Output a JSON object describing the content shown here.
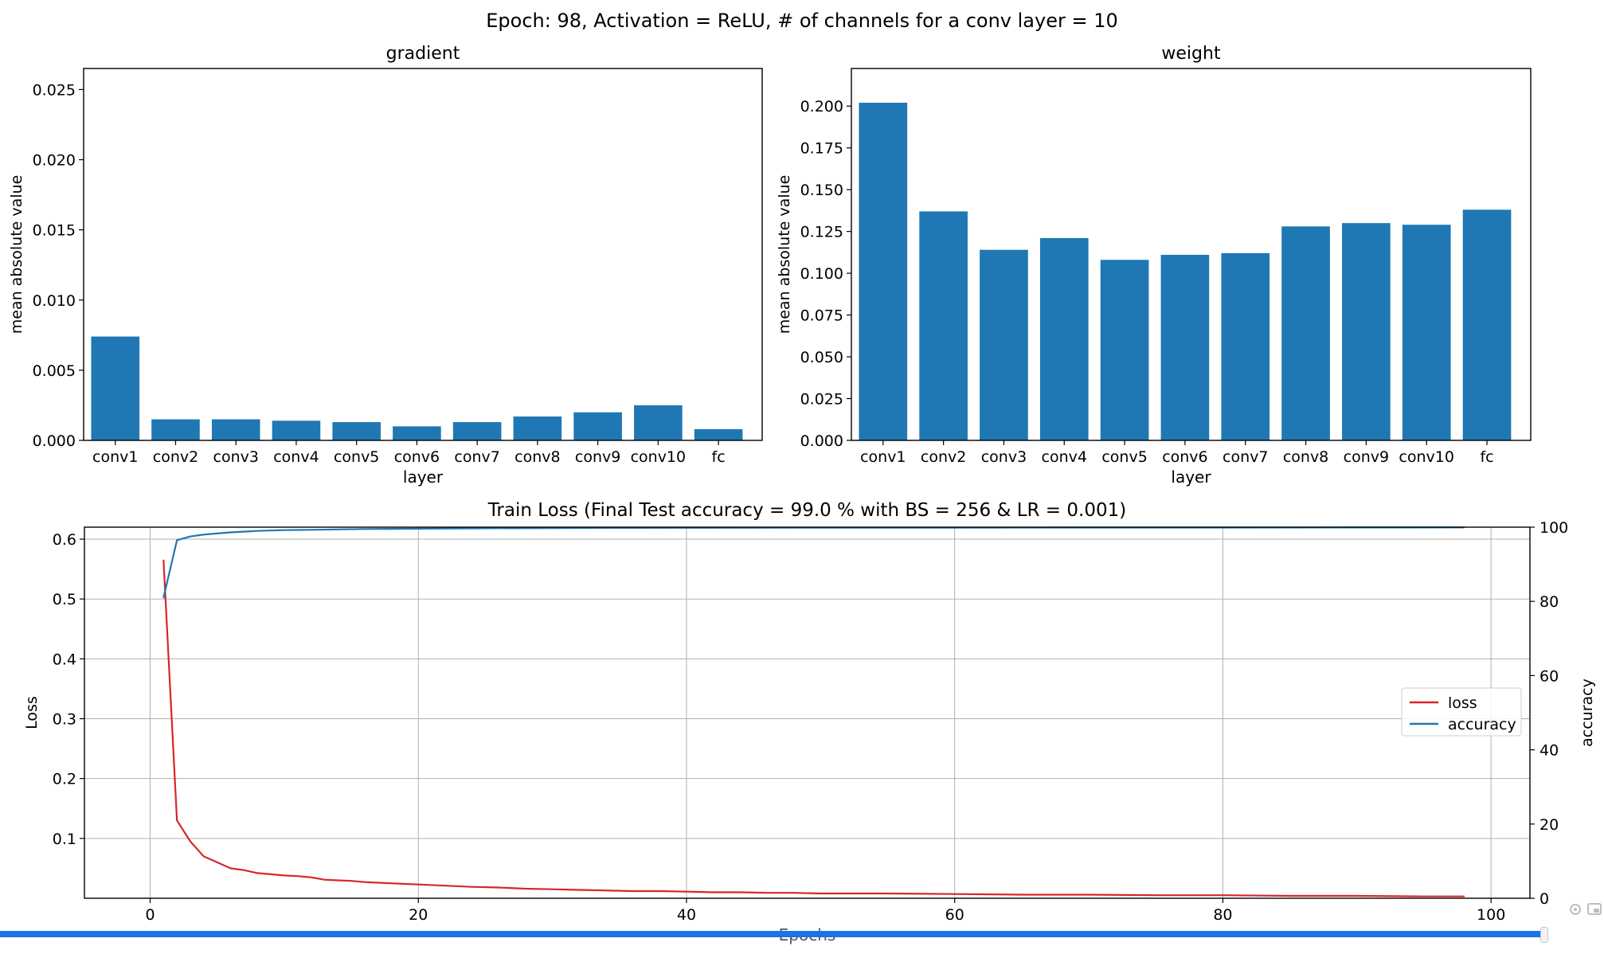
{
  "suptitle": "Epoch: 98, Activation = ReLU, # of channels for a conv layer = 10",
  "colors": {
    "bar": "#1f77b4",
    "loss": "#d62728",
    "accuracy": "#1f77b4"
  },
  "player": {
    "progress": 0.998,
    "icons": [
      "settings-icon",
      "pip-icon"
    ]
  },
  "chart_data": [
    {
      "id": "gradient",
      "type": "bar",
      "title": "gradient",
      "xlabel": "layer",
      "ylabel": "mean absolute value",
      "categories": [
        "conv1",
        "conv2",
        "conv3",
        "conv4",
        "conv5",
        "conv6",
        "conv7",
        "conv8",
        "conv9",
        "conv10",
        "fc"
      ],
      "values": [
        0.0074,
        0.0015,
        0.0015,
        0.0014,
        0.0013,
        0.001,
        0.0013,
        0.0017,
        0.002,
        0.0025,
        0.0008
      ],
      "ylim": [
        0,
        0.0265
      ],
      "yticks": [
        "0.000",
        "0.005",
        "0.010",
        "0.015",
        "0.020",
        "0.025"
      ],
      "ytick_values": [
        0,
        0.005,
        0.01,
        0.015,
        0.02,
        0.025
      ],
      "grid": false
    },
    {
      "id": "weight",
      "type": "bar",
      "title": "weight",
      "xlabel": "layer",
      "ylabel": "mean absolute value",
      "categories": [
        "conv1",
        "conv2",
        "conv3",
        "conv4",
        "conv5",
        "conv6",
        "conv7",
        "conv8",
        "conv9",
        "conv10",
        "fc"
      ],
      "values": [
        0.202,
        0.137,
        0.114,
        0.121,
        0.108,
        0.111,
        0.112,
        0.128,
        0.13,
        0.129,
        0.138
      ],
      "ylim": [
        0,
        0.2225
      ],
      "yticks": [
        "0.000",
        "0.025",
        "0.050",
        "0.075",
        "0.100",
        "0.125",
        "0.150",
        "0.175",
        "0.200"
      ],
      "ytick_values": [
        0,
        0.025,
        0.05,
        0.075,
        0.1,
        0.125,
        0.15,
        0.175,
        0.2
      ],
      "grid": false
    },
    {
      "id": "train",
      "type": "line",
      "title": "Train Loss (Final Test accuracy = 99.0 % with BS = 256 & LR = 0.001)",
      "xlabel": "Epochs",
      "ylabel": "Loss",
      "ylabel_right": "accuracy",
      "xlim": [
        -4.9,
        102.9
      ],
      "ylim": [
        0.0,
        0.62
      ],
      "ylim_right": [
        0,
        100
      ],
      "xticks": [
        "0",
        "20",
        "40",
        "60",
        "80",
        "100"
      ],
      "xtick_values": [
        0,
        20,
        40,
        60,
        80,
        100
      ],
      "yticks": [
        "0.1",
        "0.2",
        "0.3",
        "0.4",
        "0.5",
        "0.6"
      ],
      "ytick_values": [
        0.1,
        0.2,
        0.3,
        0.4,
        0.5,
        0.6
      ],
      "yticks_right": [
        "0",
        "20",
        "40",
        "60",
        "80",
        "100"
      ],
      "ytick_values_right": [
        0,
        20,
        40,
        60,
        80,
        100
      ],
      "grid": true,
      "legend": "center-right",
      "series": [
        {
          "name": "loss",
          "axis": "left",
          "x": [
            1,
            2,
            3,
            4,
            5,
            6,
            7,
            8,
            9,
            10,
            11,
            12,
            13,
            14,
            15,
            16,
            17,
            18,
            19,
            20,
            22,
            24,
            26,
            28,
            30,
            32,
            34,
            36,
            38,
            40,
            42,
            44,
            46,
            48,
            50,
            55,
            60,
            65,
            70,
            75,
            80,
            85,
            90,
            95,
            98
          ],
          "y": [
            0.565,
            0.13,
            0.095,
            0.07,
            0.06,
            0.05,
            0.047,
            0.042,
            0.04,
            0.038,
            0.037,
            0.035,
            0.031,
            0.03,
            0.029,
            0.027,
            0.026,
            0.025,
            0.024,
            0.023,
            0.021,
            0.019,
            0.018,
            0.016,
            0.015,
            0.014,
            0.013,
            0.012,
            0.012,
            0.011,
            0.01,
            0.01,
            0.009,
            0.009,
            0.008,
            0.008,
            0.007,
            0.006,
            0.006,
            0.005,
            0.005,
            0.004,
            0.004,
            0.003,
            0.003
          ]
        },
        {
          "name": "accuracy",
          "axis": "right",
          "x": [
            1,
            2,
            3,
            4,
            5,
            6,
            7,
            8,
            9,
            10,
            12,
            14,
            16,
            18,
            20,
            25,
            30,
            35,
            40,
            50,
            60,
            70,
            80,
            90,
            98
          ],
          "y": [
            81,
            96.5,
            97.5,
            98,
            98.3,
            98.6,
            98.8,
            99,
            99.1,
            99.2,
            99.3,
            99.4,
            99.5,
            99.55,
            99.6,
            99.7,
            99.75,
            99.8,
            99.82,
            99.85,
            99.87,
            99.9,
            99.9,
            99.92,
            99.93
          ]
        }
      ]
    }
  ]
}
